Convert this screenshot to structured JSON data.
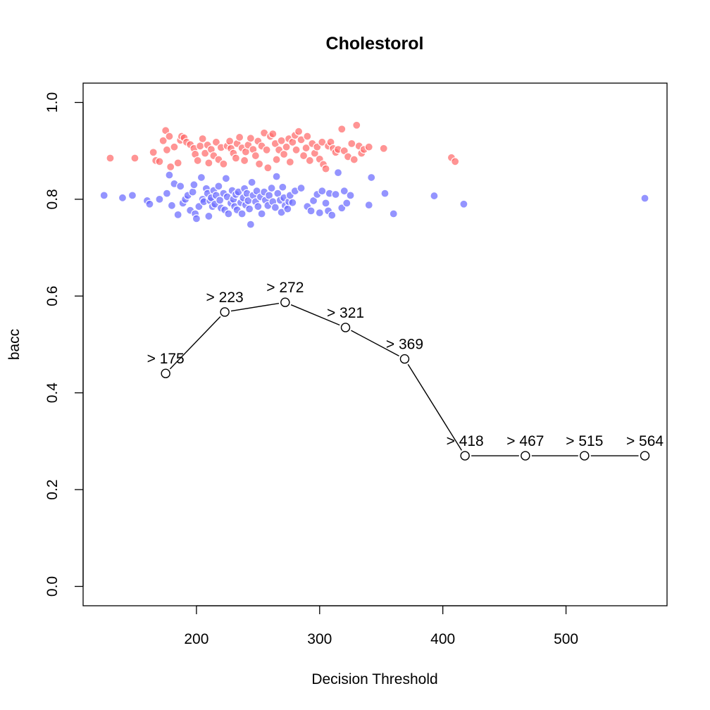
{
  "chart_data": {
    "type": "scatter",
    "title": "Cholestorol",
    "xlabel": "Decision Threshold",
    "ylabel": "bacc",
    "xlim": [
      108,
      582
    ],
    "ylim": [
      -0.04,
      1.04
    ],
    "xticks": [
      200,
      300,
      400,
      500
    ],
    "yticks": [
      0.0,
      0.2,
      0.4,
      0.6,
      0.8,
      1.0
    ],
    "grid": false,
    "legend": "none",
    "colors": {
      "red_points": "#ff6b6b",
      "blue_points": "#6b6bff",
      "line": "#000000",
      "marker_fill": "#ffffff"
    },
    "series": [
      {
        "kind": "line",
        "x": [
          175,
          223,
          272,
          321,
          369,
          418,
          467,
          515,
          564
        ],
        "y": [
          0.44,
          0.567,
          0.587,
          0.535,
          0.47,
          0.27,
          0.27,
          0.27,
          0.27
        ],
        "labels": [
          "> 175",
          "> 223",
          "> 272",
          "> 321",
          "> 369",
          "> 418",
          "> 467",
          "> 515",
          "> 564"
        ]
      },
      {
        "kind": "scatter",
        "color": "red",
        "points": [
          [
            130,
            0.885
          ],
          [
            150,
            0.885
          ],
          [
            165,
            0.897
          ],
          [
            167,
            0.88
          ],
          [
            170,
            0.878
          ],
          [
            173,
            0.921
          ],
          [
            175,
            0.942
          ],
          [
            176,
            0.902
          ],
          [
            178,
            0.93
          ],
          [
            179,
            0.867
          ],
          [
            182,
            0.908
          ],
          [
            185,
            0.875
          ],
          [
            187,
            0.922
          ],
          [
            188,
            0.93
          ],
          [
            190,
            0.927
          ],
          [
            192,
            0.918
          ],
          [
            195,
            0.913
          ],
          [
            198,
            0.905
          ],
          [
            199,
            0.893
          ],
          [
            201,
            0.88
          ],
          [
            203,
            0.91
          ],
          [
            205,
            0.925
          ],
          [
            207,
            0.895
          ],
          [
            209,
            0.912
          ],
          [
            210,
            0.875
          ],
          [
            212,
            0.903
          ],
          [
            214,
            0.89
          ],
          [
            216,
            0.918
          ],
          [
            218,
            0.882
          ],
          [
            220,
            0.907
          ],
          [
            222,
            0.873
          ],
          [
            225,
            0.91
          ],
          [
            227,
            0.92
          ],
          [
            228,
            0.905
          ],
          [
            230,
            0.895
          ],
          [
            232,
            0.885
          ],
          [
            233,
            0.915
          ],
          [
            235,
            0.928
          ],
          [
            237,
            0.906
          ],
          [
            239,
            0.88
          ],
          [
            240,
            0.898
          ],
          [
            242,
            0.912
          ],
          [
            244,
            0.926
          ],
          [
            246,
            0.903
          ],
          [
            248,
            0.89
          ],
          [
            250,
            0.92
          ],
          [
            251,
            0.873
          ],
          [
            253,
            0.91
          ],
          [
            255,
            0.937
          ],
          [
            257,
            0.902
          ],
          [
            258,
            0.865
          ],
          [
            260,
            0.93
          ],
          [
            262,
            0.935
          ],
          [
            264,
            0.915
          ],
          [
            265,
            0.882
          ],
          [
            267,
            0.902
          ],
          [
            269,
            0.921
          ],
          [
            271,
            0.893
          ],
          [
            273,
            0.908
          ],
          [
            275,
            0.925
          ],
          [
            276,
            0.877
          ],
          [
            278,
            0.918
          ],
          [
            280,
            0.932
          ],
          [
            281,
            0.902
          ],
          [
            283,
            0.94
          ],
          [
            285,
            0.923
          ],
          [
            287,
            0.89
          ],
          [
            289,
            0.906
          ],
          [
            290,
            0.93
          ],
          [
            292,
            0.88
          ],
          [
            294,
            0.915
          ],
          [
            296,
            0.895
          ],
          [
            298,
            0.908
          ],
          [
            300,
            0.883
          ],
          [
            302,
            0.918
          ],
          [
            303,
            0.872
          ],
          [
            305,
            0.863
          ],
          [
            307,
            0.91
          ],
          [
            309,
            0.918
          ],
          [
            311,
            0.905
          ],
          [
            313,
            0.897
          ],
          [
            315,
            0.903
          ],
          [
            318,
            0.945
          ],
          [
            320,
            0.9
          ],
          [
            323,
            0.888
          ],
          [
            326,
            0.915
          ],
          [
            328,
            0.882
          ],
          [
            330,
            0.953
          ],
          [
            332,
            0.91
          ],
          [
            334,
            0.895
          ],
          [
            336,
            0.903
          ],
          [
            340,
            0.908
          ],
          [
            352,
            0.905
          ],
          [
            407,
            0.886
          ],
          [
            410,
            0.878
          ]
        ]
      },
      {
        "kind": "scatter",
        "color": "blue",
        "points": [
          [
            125,
            0.808
          ],
          [
            140,
            0.803
          ],
          [
            148,
            0.808
          ],
          [
            160,
            0.797
          ],
          [
            162,
            0.79
          ],
          [
            170,
            0.8
          ],
          [
            176,
            0.812
          ],
          [
            178,
            0.85
          ],
          [
            180,
            0.787
          ],
          [
            182,
            0.832
          ],
          [
            185,
            0.768
          ],
          [
            187,
            0.827
          ],
          [
            189,
            0.792
          ],
          [
            191,
            0.8
          ],
          [
            193,
            0.808
          ],
          [
            195,
            0.777
          ],
          [
            197,
            0.815
          ],
          [
            198,
            0.83
          ],
          [
            199,
            0.77
          ],
          [
            200,
            0.76
          ],
          [
            202,
            0.785
          ],
          [
            204,
            0.845
          ],
          [
            205,
            0.8
          ],
          [
            206,
            0.795
          ],
          [
            208,
            0.822
          ],
          [
            209,
            0.812
          ],
          [
            210,
            0.765
          ],
          [
            211,
            0.797
          ],
          [
            212,
            0.803
          ],
          [
            213,
            0.785
          ],
          [
            214,
            0.818
          ],
          [
            215,
            0.79
          ],
          [
            216,
            0.808
          ],
          [
            218,
            0.827
          ],
          [
            219,
            0.798
          ],
          [
            220,
            0.782
          ],
          [
            222,
            0.812
          ],
          [
            223,
            0.778
          ],
          [
            224,
            0.843
          ],
          [
            225,
            0.805
          ],
          [
            226,
            0.77
          ],
          [
            228,
            0.792
          ],
          [
            229,
            0.818
          ],
          [
            230,
            0.8
          ],
          [
            231,
            0.785
          ],
          [
            232,
            0.81
          ],
          [
            233,
            0.778
          ],
          [
            234,
            0.815
          ],
          [
            236,
            0.793
          ],
          [
            237,
            0.77
          ],
          [
            238,
            0.803
          ],
          [
            239,
            0.822
          ],
          [
            240,
            0.788
          ],
          [
            241,
            0.812
          ],
          [
            242,
            0.797
          ],
          [
            243,
            0.78
          ],
          [
            244,
            0.748
          ],
          [
            245,
            0.835
          ],
          [
            246,
            0.808
          ],
          [
            248,
            0.795
          ],
          [
            249,
            0.817
          ],
          [
            250,
            0.785
          ],
          [
            252,
            0.805
          ],
          [
            253,
            0.77
          ],
          [
            255,
            0.815
          ],
          [
            256,
            0.798
          ],
          [
            258,
            0.787
          ],
          [
            259,
            0.808
          ],
          [
            261,
            0.823
          ],
          [
            262,
            0.795
          ],
          [
            264,
            0.783
          ],
          [
            265,
            0.847
          ],
          [
            266,
            0.812
          ],
          [
            268,
            0.798
          ],
          [
            269,
            0.773
          ],
          [
            270,
            0.825
          ],
          [
            271,
            0.803
          ],
          [
            272,
            0.787
          ],
          [
            274,
            0.78
          ],
          [
            275,
            0.795
          ],
          [
            276,
            0.808
          ],
          [
            278,
            0.793
          ],
          [
            280,
            0.817
          ],
          [
            285,
            0.823
          ],
          [
            290,
            0.785
          ],
          [
            293,
            0.776
          ],
          [
            295,
            0.797
          ],
          [
            298,
            0.81
          ],
          [
            300,
            0.772
          ],
          [
            302,
            0.817
          ],
          [
            305,
            0.792
          ],
          [
            307,
            0.776
          ],
          [
            308,
            0.812
          ],
          [
            310,
            0.767
          ],
          [
            313,
            0.81
          ],
          [
            315,
            0.855
          ],
          [
            318,
            0.782
          ],
          [
            320,
            0.817
          ],
          [
            322,
            0.792
          ],
          [
            325,
            0.808
          ],
          [
            340,
            0.788
          ],
          [
            342,
            0.845
          ],
          [
            353,
            0.812
          ],
          [
            360,
            0.77
          ],
          [
            393,
            0.807
          ],
          [
            417,
            0.79
          ],
          [
            564,
            0.802
          ]
        ]
      }
    ]
  }
}
